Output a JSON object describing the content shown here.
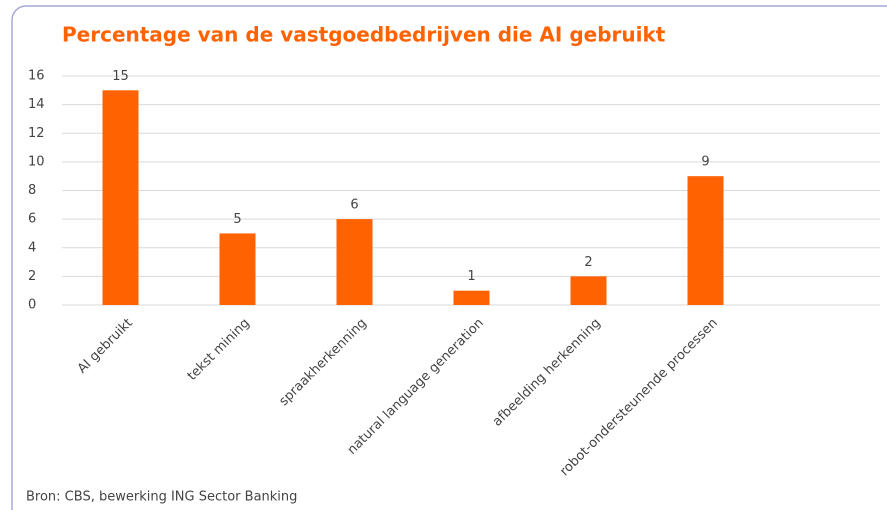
{
  "chart_data": {
    "type": "bar",
    "title": "Percentage van de vastgoedbedrijven die AI gebruikt",
    "categories": [
      "AI gebruikt",
      "tekst mining",
      "spraakherkenning",
      "natural language generation",
      "afbeelding herkenning",
      "robot-ondersteunende processen"
    ],
    "values": [
      15,
      5,
      6,
      1,
      2,
      9
    ],
    "color": "#ff6200",
    "ylim": [
      0,
      16
    ],
    "yticks": [
      0,
      2,
      4,
      6,
      8,
      10,
      12,
      14,
      16
    ],
    "grid": true,
    "source": "Bron: CBS, bewerking ING Sector Banking"
  }
}
